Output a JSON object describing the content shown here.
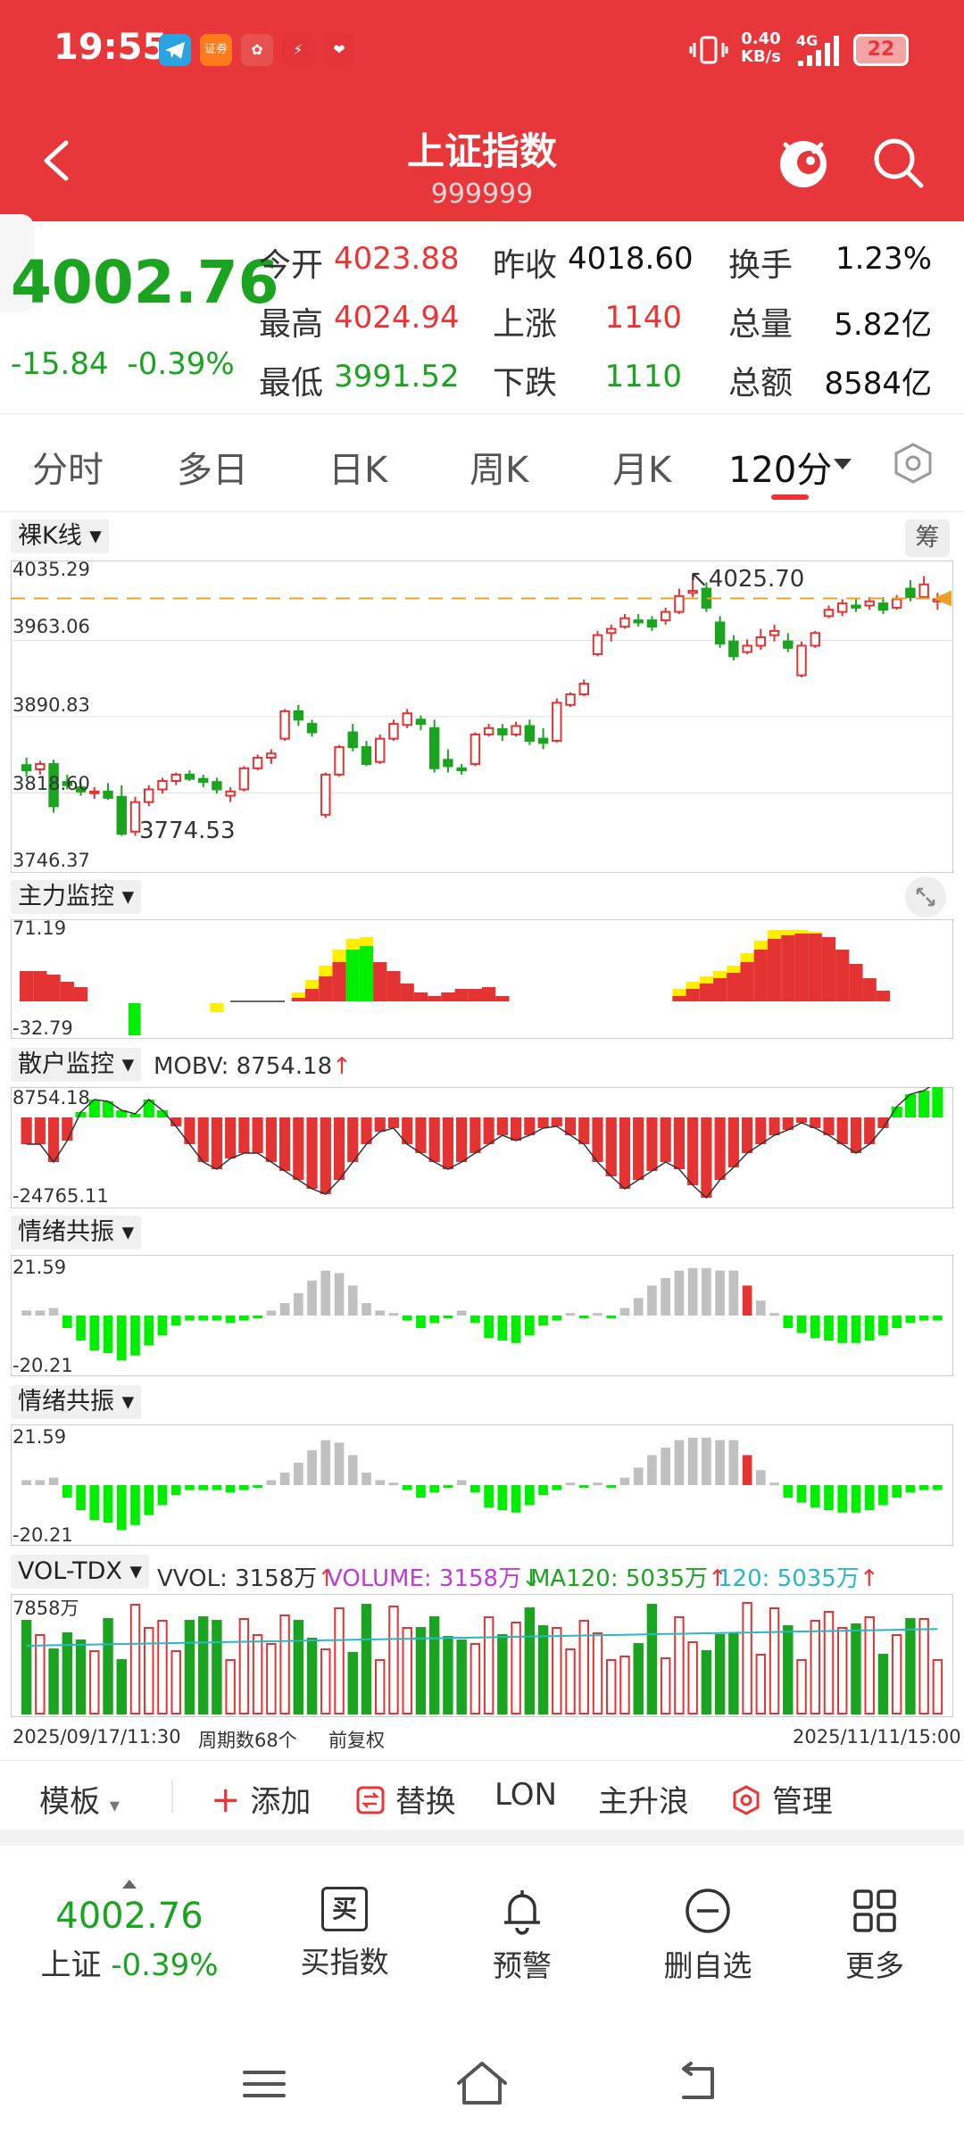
{
  "status_bar": {
    "time": "19:55",
    "net_speed_value": "0.40",
    "net_speed_unit": "KB/s",
    "network": "4G",
    "battery": "22",
    "app_icons": [
      "telegram-icon",
      "securities-app-icon",
      "flower-app-icon",
      "bolt-app-icon",
      "heart-app-icon"
    ],
    "app_icon_label": "证券"
  },
  "header": {
    "title": "上证指数",
    "code": "999999"
  },
  "quote": {
    "price": "4002.76",
    "change": "-15.84",
    "change_pct": "-0.39%",
    "rows": [
      [
        {
          "label": "今开",
          "value": "4023.88",
          "color": "red"
        },
        {
          "label": "昨收",
          "value": "4018.60",
          "color": "black"
        },
        {
          "label": "换手",
          "value": "1.23%",
          "color": "black"
        }
      ],
      [
        {
          "label": "最高",
          "value": "4024.94",
          "color": "red"
        },
        {
          "label": "上涨",
          "value": "1140",
          "color": "red"
        },
        {
          "label": "总量",
          "value": "5.82亿",
          "color": "black"
        }
      ],
      [
        {
          "label": "最低",
          "value": "3991.52",
          "color": "green"
        },
        {
          "label": "下跌",
          "value": "1110",
          "color": "green"
        },
        {
          "label": "总额",
          "value": "8584亿",
          "color": "black"
        }
      ]
    ]
  },
  "tabs": [
    "分时",
    "多日",
    "日K",
    "周K",
    "月K",
    "120分"
  ],
  "active_tab": "120分",
  "kline": {
    "label": "裸K线",
    "chip_label": "筹",
    "y_ticks": [
      "4035.29",
      "3963.06",
      "3890.83",
      "3818.60",
      "3746.37"
    ],
    "high_label": "4025.70",
    "low_label": "3774.53",
    "current_price": 4002.76
  },
  "main_monitor": {
    "label": "主力监控",
    "max": "71.19",
    "min": "-32.79"
  },
  "retail_monitor": {
    "label": "散户监控",
    "indicator": "MOBV: 8754.18",
    "max": "8754.18",
    "min": "-24765.11"
  },
  "sentiment1": {
    "label": "情绪共振",
    "max": "21.59",
    "min": "-20.21"
  },
  "sentiment2": {
    "label": "情绪共振",
    "max": "21.59",
    "min": "-20.21"
  },
  "volume": {
    "label": "VOL-TDX",
    "vvol": "VVOL: 3158万",
    "volume_txt": "VOLUME: 3158万",
    "ma120": "MA120: 5035万",
    "ma120b": "120: 5035万",
    "y_max": "7858万"
  },
  "footer_axis": {
    "start": "2025/09/17/11:30",
    "period_count": "周期数68个",
    "adjust": "前复权",
    "end": "2025/11/11/15:00"
  },
  "toolbar": {
    "template": "模板",
    "add": "添加",
    "replace": "替换",
    "lon": "LON",
    "wave": "主升浪",
    "manage": "管理"
  },
  "bottom_nav": {
    "price": "4002.76",
    "index_name": "上证",
    "index_change": "-0.39%",
    "buy_icon_char": "买",
    "buy": "买指数",
    "alert": "预警",
    "remove": "删自选",
    "more": "更多"
  },
  "colors": {
    "brand_red": "#e8373b",
    "up_red": "#e33333",
    "down_green": "#1aa41f",
    "bright_green": "#00ee00",
    "yellow": "#ffee00",
    "gray": "#c0c0c0",
    "ma_cyan": "#29b6c6",
    "volume_purple": "#c03ad8",
    "ref_orange": "#f0a020"
  },
  "chart_data": {
    "type": "candlestick",
    "title": "",
    "ylim": [
      3746.37,
      4035.29
    ],
    "candles": [
      [
        3845,
        3852,
        3834,
        3840
      ],
      [
        3841,
        3849,
        3836,
        3846
      ],
      [
        3846,
        3850,
        3800,
        3806
      ],
      [
        3829,
        3836,
        3822,
        3826
      ],
      [
        3824,
        3828,
        3816,
        3820
      ],
      [
        3819,
        3824,
        3813,
        3820
      ],
      [
        3820,
        3828,
        3812,
        3814
      ],
      [
        3815,
        3826,
        3778,
        3780
      ],
      [
        3782,
        3815,
        3778,
        3810
      ],
      [
        3810,
        3826,
        3806,
        3822
      ],
      [
        3822,
        3833,
        3818,
        3830
      ],
      [
        3830,
        3838,
        3826,
        3836
      ],
      [
        3836,
        3840,
        3830,
        3832
      ],
      [
        3832,
        3836,
        3824,
        3829
      ],
      [
        3829,
        3833,
        3818,
        3822
      ],
      [
        3816,
        3824,
        3810,
        3820
      ],
      [
        3822,
        3844,
        3820,
        3842
      ],
      [
        3842,
        3855,
        3840,
        3852
      ],
      [
        3852,
        3860,
        3846,
        3856
      ],
      [
        3870,
        3898,
        3868,
        3896
      ],
      [
        3896,
        3902,
        3882,
        3888
      ],
      [
        3884,
        3888,
        3872,
        3876
      ],
      [
        3798,
        3838,
        3795,
        3836
      ],
      [
        3836,
        3864,
        3834,
        3862
      ],
      [
        3876,
        3884,
        3858,
        3862
      ],
      [
        3862,
        3868,
        3844,
        3846
      ],
      [
        3848,
        3874,
        3846,
        3870
      ],
      [
        3870,
        3888,
        3868,
        3884
      ],
      [
        3883,
        3898,
        3880,
        3894
      ],
      [
        3888,
        3892,
        3878,
        3884
      ],
      [
        3880,
        3888,
        3838,
        3842
      ],
      [
        3850,
        3860,
        3838,
        3844
      ],
      [
        3842,
        3846,
        3836,
        3840
      ],
      [
        3846,
        3876,
        3844,
        3874
      ],
      [
        3874,
        3884,
        3872,
        3880
      ],
      [
        3879,
        3884,
        3868,
        3874
      ],
      [
        3874,
        3886,
        3872,
        3882
      ],
      [
        3882,
        3888,
        3864,
        3868
      ],
      [
        3870,
        3880,
        3860,
        3866
      ],
      [
        3868,
        3908,
        3866,
        3904
      ],
      [
        3902,
        3914,
        3900,
        3912
      ],
      [
        3912,
        3926,
        3910,
        3922
      ],
      [
        3950,
        3972,
        3948,
        3968
      ],
      [
        3970,
        3978,
        3962,
        3974
      ],
      [
        3976,
        3988,
        3974,
        3984
      ],
      [
        3982,
        3988,
        3976,
        3980
      ],
      [
        3982,
        3986,
        3972,
        3976
      ],
      [
        3982,
        3994,
        3978,
        3990
      ],
      [
        3990,
        4012,
        3988,
        4005
      ],
      [
        4008,
        4026,
        4004,
        4010
      ],
      [
        4012,
        4018,
        3990,
        3994
      ],
      [
        3980,
        3986,
        3956,
        3960
      ],
      [
        3962,
        3968,
        3944,
        3948
      ],
      [
        3952,
        3964,
        3950,
        3958
      ],
      [
        3958,
        3974,
        3954,
        3966
      ],
      [
        3968,
        3978,
        3962,
        3972
      ],
      [
        3962,
        3970,
        3952,
        3956
      ],
      [
        3930,
        3962,
        3928,
        3958
      ],
      [
        3958,
        3972,
        3956,
        3970
      ],
      [
        3986,
        3996,
        3984,
        3992
      ],
      [
        3990,
        4002,
        3986,
        3998
      ],
      [
        3996,
        4002,
        3990,
        3994
      ],
      [
        3996,
        4004,
        3992,
        4000
      ],
      [
        3998,
        4004,
        3988,
        3992
      ],
      [
        3994,
        4006,
        3992,
        4002
      ],
      [
        4012,
        4020,
        4000,
        4004
      ],
      [
        4004,
        4024,
        4002,
        4016
      ],
      [
        4000,
        4008,
        3992,
        4002
      ]
    ]
  }
}
